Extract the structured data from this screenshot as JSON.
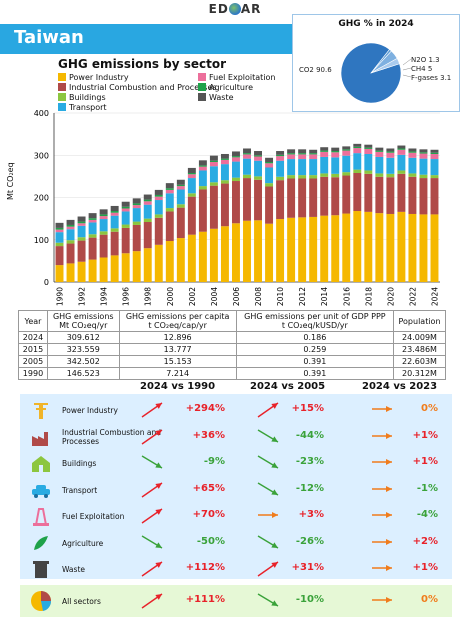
{
  "header": {
    "logo_text": "ED GAR",
    "country": "Taiwan"
  },
  "pie": {
    "title": "GHG % in 2024",
    "slices": [
      {
        "label": "CO2",
        "value": 90.6,
        "color": "#2f76c0"
      },
      {
        "label": "N2O",
        "value": 1.3,
        "color": "#5b9bd5"
      },
      {
        "label": "CH4",
        "value": 5.0,
        "color": "#7eb0e0"
      },
      {
        "label": "F-gases",
        "value": 3.1,
        "color": "#a9cbee"
      }
    ]
  },
  "chart_data": {
    "type": "bar",
    "stacked": true,
    "title": "GHG emissions by sector",
    "ylabel": "Mt CO₂eq",
    "ylim": [
      0,
      400
    ],
    "yticks": [
      0,
      100,
      200,
      300,
      400
    ],
    "categories": [
      1990,
      1991,
      1992,
      1993,
      1994,
      1995,
      1996,
      1997,
      1998,
      1999,
      2000,
      2001,
      2002,
      2003,
      2004,
      2005,
      2006,
      2007,
      2008,
      2009,
      2010,
      2011,
      2012,
      2013,
      2014,
      2015,
      2016,
      2017,
      2018,
      2019,
      2020,
      2021,
      2022,
      2023,
      2024
    ],
    "xtick_labels": [
      "1990",
      "1992",
      "1994",
      "1996",
      "1998",
      "2000",
      "2002",
      "2004",
      "2006",
      "2008",
      "2010",
      "2012",
      "2014",
      "2016",
      "2018",
      "2020",
      "2022",
      "2024"
    ],
    "series": [
      {
        "name": "Power Industry",
        "color": "#f5b800",
        "values": [
          40,
          44,
          48,
          53,
          58,
          63,
          68,
          73,
          80,
          88,
          97,
          104,
          112,
          119,
          126,
          132,
          139,
          145,
          146,
          138,
          149,
          152,
          153,
          154,
          157,
          158,
          162,
          168,
          166,
          163,
          161,
          166,
          161,
          160,
          160
        ]
      },
      {
        "name": "Industrial Combustion and Processes",
        "color": "#b04a48",
        "values": [
          45,
          47,
          50,
          52,
          54,
          56,
          60,
          62,
          62,
          64,
          70,
          72,
          90,
          100,
          102,
          101,
          100,
          101,
          96,
          88,
          92,
          93,
          92,
          91,
          92,
          90,
          90,
          90,
          90,
          86,
          87,
          90,
          88,
          86,
          86
        ]
      },
      {
        "name": "Buildings",
        "color": "#8cc63f",
        "values": [
          8,
          8,
          8,
          8,
          8,
          8,
          8,
          8,
          8,
          8,
          8,
          8,
          8,
          8,
          8,
          8,
          8,
          8,
          8,
          8,
          8,
          8,
          8,
          8,
          8,
          8,
          8,
          8,
          8,
          8,
          8,
          8,
          8,
          8,
          7
        ]
      },
      {
        "name": "Transport",
        "color": "#29abe2",
        "values": [
          25,
          26,
          27,
          28,
          29,
          30,
          31,
          32,
          33,
          34,
          35,
          35,
          36,
          37,
          38,
          38,
          38,
          38,
          37,
          37,
          38,
          38,
          38,
          38,
          39,
          39,
          39,
          39,
          39,
          39,
          38,
          37,
          37,
          38,
          38
        ]
      },
      {
        "name": "Fuel Exploitation",
        "color": "#ec6f9b",
        "values": [
          6,
          6,
          6,
          6,
          7,
          7,
          7,
          7,
          8,
          8,
          8,
          8,
          9,
          9,
          10,
          10,
          10,
          10,
          10,
          10,
          11,
          11,
          11,
          11,
          12,
          12,
          12,
          12,
          12,
          12,
          12,
          12,
          12,
          12,
          12
        ]
      },
      {
        "name": "Agriculture",
        "color": "#1fa24a",
        "values": [
          4,
          4,
          4,
          4,
          4,
          4,
          4,
          4,
          4,
          4,
          4,
          3,
          3,
          3,
          3,
          3,
          3,
          3,
          3,
          3,
          3,
          3,
          3,
          3,
          3,
          3,
          3,
          3,
          3,
          3,
          3,
          3,
          3,
          3,
          3
        ]
      },
      {
        "name": "Waste",
        "color": "#555555",
        "values": [
          12,
          12,
          12,
          12,
          12,
          12,
          12,
          12,
          12,
          12,
          12,
          12,
          12,
          12,
          12,
          11,
          11,
          11,
          10,
          10,
          9,
          9,
          9,
          8,
          8,
          8,
          7,
          7,
          7,
          7,
          7,
          7,
          7,
          7,
          7
        ]
      }
    ]
  },
  "table": {
    "headers": [
      {
        "line1": "Year",
        "line2": ""
      },
      {
        "line1": "GHG emissions",
        "line2": "Mt CO₂eq/yr"
      },
      {
        "line1": "GHG emissions per capita",
        "line2": "t CO₂eq/cap/yr"
      },
      {
        "line1": "GHG emissions per unit of GDP PPP",
        "line2": "t CO₂eq/kUSD/yr"
      },
      {
        "line1": "Population",
        "line2": ""
      }
    ],
    "rows": [
      [
        "2024",
        "309.612",
        "12.896",
        "0.186",
        "24.009M"
      ],
      [
        "2015",
        "323.559",
        "13.777",
        "0.259",
        "23.486M"
      ],
      [
        "2005",
        "342.502",
        "15.153",
        "0.391",
        "22.603M"
      ],
      [
        "1990",
        "146.523",
        "7.214",
        "0.391",
        "20.312M"
      ]
    ]
  },
  "comparison": {
    "headers": [
      "2024 vs 1990",
      "2024 vs 2005",
      "2024 vs 2023"
    ],
    "rows": [
      {
        "name": "Power Industry",
        "icon": "power-industry-icon",
        "v1990": "+294%",
        "d1990": "up",
        "v2005": "+15%",
        "d2005": "up",
        "v2023": "0%",
        "d2023": "flat"
      },
      {
        "name": "Industrial Combustion and Processes",
        "icon": "factory-icon",
        "v1990": "+36%",
        "d1990": "up",
        "v2005": "-44%",
        "d2005": "down",
        "v2023": "+1%",
        "d2023": "flat"
      },
      {
        "name": "Buildings",
        "icon": "buildings-icon",
        "v1990": "-9%",
        "d1990": "down",
        "v2005": "-23%",
        "d2005": "down",
        "v2023": "+1%",
        "d2023": "flat"
      },
      {
        "name": "Transport",
        "icon": "car-icon",
        "v1990": "+65%",
        "d1990": "up",
        "v2005": "-12%",
        "d2005": "down",
        "v2023": "-1%",
        "d2023": "flat"
      },
      {
        "name": "Fuel Exploitation",
        "icon": "fuel-exploitation-icon",
        "v1990": "+70%",
        "d1990": "up",
        "v2005": "+3%",
        "d2005": "flat",
        "v2023": "-4%",
        "d2023": "flat"
      },
      {
        "name": "Agriculture",
        "icon": "agriculture-icon",
        "v1990": "-50%",
        "d1990": "down",
        "v2005": "-26%",
        "d2005": "down",
        "v2023": "+2%",
        "d2023": "flat"
      },
      {
        "name": "Waste",
        "icon": "waste-bin-icon",
        "v1990": "+112%",
        "d1990": "up",
        "v2005": "+31%",
        "d2005": "up",
        "v2023": "+1%",
        "d2023": "flat"
      }
    ],
    "all": {
      "name": "All sectors",
      "icon": "all-sectors-pie-icon",
      "v1990": "+111%",
      "d1990": "up",
      "v2005": "-10%",
      "d2005": "down",
      "v2023": "0%",
      "d2023": "flat"
    }
  }
}
